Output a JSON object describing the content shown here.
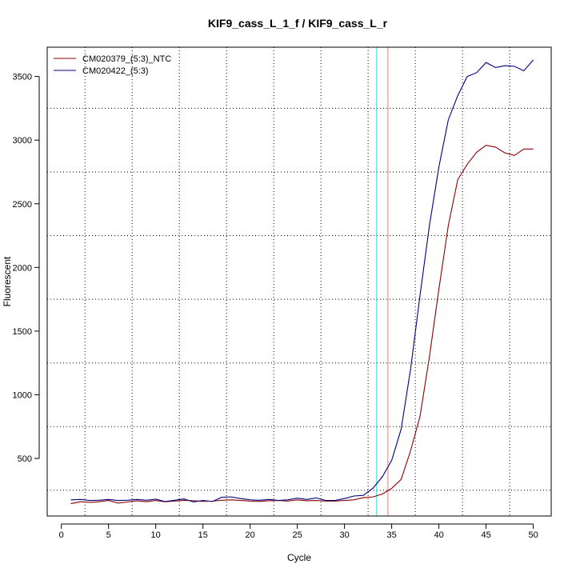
{
  "chart_data": {
    "type": "line",
    "title": "KIF9_cass_L_1_f / KIF9_cass_L_r",
    "xlabel": "Cycle",
    "ylabel": "Fluorescent",
    "xlim": [
      -1.5,
      51.9
    ],
    "ylim": [
      48,
      3730
    ],
    "xticks": [
      0,
      5,
      10,
      15,
      20,
      25,
      30,
      35,
      40,
      45,
      50
    ],
    "yticks": [
      500,
      1000,
      1500,
      2000,
      2500,
      3000,
      3500
    ],
    "grid": true,
    "legend_position": "top-left",
    "vertical_lines": [
      {
        "x": 33.4,
        "color": "#40e0e0"
      },
      {
        "x": 34.6,
        "color": "#e08080"
      }
    ],
    "x": [
      1,
      2,
      3,
      4,
      5,
      6,
      7,
      8,
      9,
      10,
      11,
      12,
      13,
      14,
      15,
      16,
      17,
      18,
      19,
      20,
      21,
      22,
      23,
      24,
      25,
      26,
      27,
      28,
      29,
      30,
      31,
      32,
      33,
      34,
      35,
      36,
      37,
      38,
      39,
      40,
      41,
      42,
      43,
      44,
      45,
      46,
      47,
      48,
      49,
      50
    ],
    "series": [
      {
        "name": "CM020379_(5:3)_NTC",
        "color": "#8b0000",
        "values": [
          145,
          160,
          155,
          160,
          170,
          150,
          158,
          168,
          160,
          170,
          160,
          165,
          172,
          168,
          163,
          165,
          172,
          175,
          170,
          165,
          162,
          168,
          170,
          165,
          175,
          168,
          170,
          165,
          165,
          170,
          175,
          192,
          198,
          220,
          265,
          335,
          560,
          830,
          1300,
          1830,
          2330,
          2690,
          2810,
          2905,
          2960,
          2945,
          2900,
          2880,
          2930,
          2930
        ]
      },
      {
        "name": "CM020422_(5:3)",
        "color": "#000080",
        "values": [
          175,
          178,
          170,
          172,
          178,
          170,
          172,
          178,
          172,
          180,
          162,
          172,
          182,
          158,
          170,
          162,
          195,
          198,
          185,
          175,
          172,
          178,
          170,
          175,
          188,
          178,
          190,
          170,
          170,
          185,
          205,
          210,
          265,
          355,
          485,
          730,
          1200,
          1780,
          2330,
          2790,
          3160,
          3350,
          3500,
          3530,
          3610,
          3570,
          3585,
          3580,
          3545,
          3630
        ]
      }
    ]
  }
}
